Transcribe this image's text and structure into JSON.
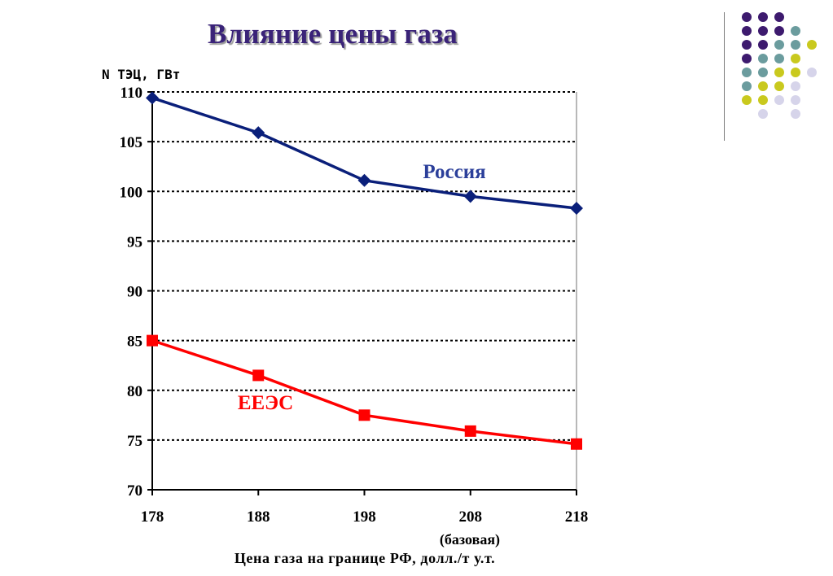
{
  "slide": {
    "title": "Влияние цены газа"
  },
  "decor": {
    "palette": {
      "purple": "#3d1a6e",
      "teal": "#6b9c9e",
      "yellow": "#c9c91e",
      "lavender": "#d6d4ea"
    },
    "rows": [
      [
        "purple",
        "purple",
        "purple",
        null,
        null
      ],
      [
        "purple",
        "purple",
        "purple",
        "teal",
        null
      ],
      [
        "purple",
        "purple",
        "teal",
        "teal",
        "yellow"
      ],
      [
        "purple",
        "teal",
        "teal",
        "yellow",
        null
      ],
      [
        "teal",
        "teal",
        "yellow",
        "yellow",
        "lavender"
      ],
      [
        "teal",
        "yellow",
        "yellow",
        "lavender",
        null
      ],
      [
        "yellow",
        "yellow",
        "lavender",
        "lavender",
        null
      ],
      [
        null,
        "lavender",
        null,
        "lavender",
        null
      ]
    ]
  },
  "chart_data": {
    "type": "line",
    "title": "Влияние цены газа",
    "ylabel": "N ТЭЦ, ГВт",
    "xlabel": "Цена газа на границе РФ, долл./т у.т.",
    "x": [
      178,
      188,
      198,
      208,
      218
    ],
    "x_tick_labels": [
      "178",
      "188",
      "198",
      "208",
      "218"
    ],
    "x_tick_note": {
      "at": 208,
      "text": "(базовая)"
    },
    "ylim": [
      70,
      110
    ],
    "y_ticks": [
      70,
      75,
      80,
      85,
      90,
      95,
      100,
      105,
      110
    ],
    "grid": "horizontal dotted",
    "series": [
      {
        "name": "Россия",
        "color": "#0a1f7a",
        "label_color": "#2b3f9a",
        "marker": "diamond",
        "values": [
          109.4,
          105.9,
          101.1,
          99.5,
          98.3
        ]
      },
      {
        "name": "ЕЕЭС",
        "color": "#ff0000",
        "label_color": "#ff0000",
        "marker": "square",
        "values": [
          85.0,
          81.5,
          77.5,
          75.9,
          74.6
        ]
      }
    ]
  }
}
